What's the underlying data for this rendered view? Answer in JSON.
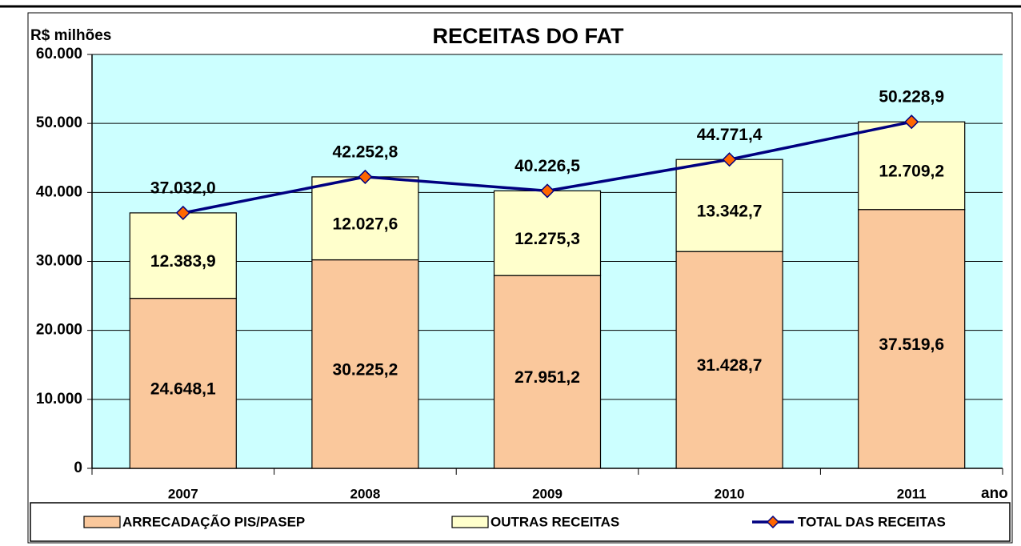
{
  "chart_data": {
    "type": "bar",
    "stacked": true,
    "title": "RECEITAS DO FAT",
    "y_label": "R$ milhões",
    "x_label": "ano",
    "categories": [
      "2007",
      "2008",
      "2009",
      "2010",
      "2011"
    ],
    "series": [
      {
        "name": "ARRECADAÇÃO PIS/PASEP",
        "color": "#fac89c",
        "values": [
          24648.1,
          30225.2,
          27951.2,
          31428.7,
          37519.6
        ],
        "value_labels": [
          "24.648,1",
          "30.225,2",
          "27.951,2",
          "31.428,7",
          "37.519,6"
        ]
      },
      {
        "name": "OUTRAS RECEITAS",
        "color": "#ffffcc",
        "values": [
          12383.9,
          12027.6,
          12275.3,
          13342.7,
          12709.2
        ],
        "value_labels": [
          "12.383,9",
          "12.027,6",
          "12.275,3",
          "13.342,7",
          "12.709,2"
        ]
      },
      {
        "name": "TOTAL DAS RECEITAS",
        "type": "line",
        "color": "#000080",
        "marker_color": "#ff6600",
        "values": [
          37032.0,
          42252.8,
          40226.5,
          44771.4,
          50228.9
        ],
        "value_labels": [
          "37.032,0",
          "42.252,8",
          "40.226,5",
          "44.771,4",
          "50.228,9"
        ]
      }
    ],
    "ylim": [
      0,
      60000
    ],
    "yticks": [
      0,
      {
        "value": 10000,
        "label": "10.000"
      },
      {
        "value": 20000,
        "label": "20.000"
      },
      {
        "value": 30000,
        "label": "30.000"
      },
      {
        "value": 40000,
        "label": "40.000"
      },
      {
        "value": 50000,
        "label": "50.000"
      },
      {
        "value": 60000,
        "label": "60.000"
      }
    ],
    "grid": true,
    "plot_background": "#ccffff",
    "legend": "bottom"
  }
}
